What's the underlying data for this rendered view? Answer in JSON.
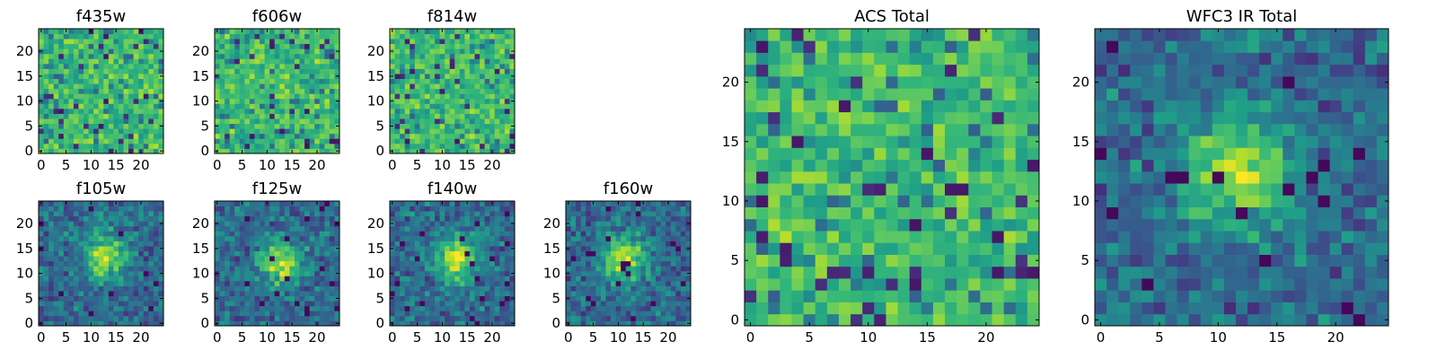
{
  "chart_data": {
    "type": "heatmap",
    "colormap": "viridis",
    "grid": false,
    "panels": [
      {
        "title": "f435w",
        "x_ticks": [
          0,
          5,
          10,
          15,
          20
        ],
        "y_ticks": [
          0,
          5,
          10,
          15,
          20
        ],
        "xlim": [
          -0.5,
          24.5
        ],
        "ylim": [
          -0.5,
          24.5
        ],
        "grid_size": 25,
        "pattern": "noise"
      },
      {
        "title": "f606w",
        "x_ticks": [
          0,
          5,
          10,
          15,
          20
        ],
        "y_ticks": [
          0,
          5,
          10,
          15,
          20
        ],
        "xlim": [
          -0.5,
          24.5
        ],
        "ylim": [
          -0.5,
          24.5
        ],
        "grid_size": 25,
        "pattern": "noise"
      },
      {
        "title": "f814w",
        "x_ticks": [
          0,
          5,
          10,
          15,
          20
        ],
        "y_ticks": [
          0,
          5,
          10,
          15,
          20
        ],
        "xlim": [
          -0.5,
          24.5
        ],
        "ylim": [
          -0.5,
          24.5
        ],
        "grid_size": 25,
        "pattern": "noise"
      },
      {
        "title": "f105w",
        "x_ticks": [
          0,
          5,
          10,
          15,
          20
        ],
        "y_ticks": [
          0,
          5,
          10,
          15,
          20
        ],
        "xlim": [
          -0.5,
          24.5
        ],
        "ylim": [
          -0.5,
          24.5
        ],
        "grid_size": 25,
        "pattern": "source"
      },
      {
        "title": "f125w",
        "x_ticks": [
          0,
          5,
          10,
          15,
          20
        ],
        "y_ticks": [
          0,
          5,
          10,
          15,
          20
        ],
        "xlim": [
          -0.5,
          24.5
        ],
        "ylim": [
          -0.5,
          24.5
        ],
        "grid_size": 25,
        "pattern": "source"
      },
      {
        "title": "f140w",
        "x_ticks": [
          0,
          5,
          10,
          15,
          20
        ],
        "y_ticks": [
          0,
          5,
          10,
          15,
          20
        ],
        "xlim": [
          -0.5,
          24.5
        ],
        "ylim": [
          -0.5,
          24.5
        ],
        "grid_size": 25,
        "pattern": "source"
      },
      {
        "title": "f160w",
        "x_ticks": [
          0,
          5,
          10,
          15,
          20
        ],
        "y_ticks": [
          0,
          5,
          10,
          15,
          20
        ],
        "xlim": [
          -0.5,
          24.5
        ],
        "ylim": [
          -0.5,
          24.5
        ],
        "grid_size": 25,
        "pattern": "source"
      },
      {
        "title": "ACS Total",
        "x_ticks": [
          0,
          5,
          10,
          15,
          20
        ],
        "y_ticks": [
          0,
          5,
          10,
          15,
          20
        ],
        "xlim": [
          -0.5,
          24.5
        ],
        "ylim": [
          -0.5,
          24.5
        ],
        "grid_size": 25,
        "pattern": "noise"
      },
      {
        "title": "WFC3 IR Total",
        "x_ticks": [
          0,
          5,
          10,
          15,
          20
        ],
        "y_ticks": [
          0,
          5,
          10,
          15,
          20
        ],
        "xlim": [
          -0.5,
          24.5
        ],
        "ylim": [
          -0.5,
          24.5
        ],
        "grid_size": 25,
        "pattern": "source"
      }
    ]
  }
}
